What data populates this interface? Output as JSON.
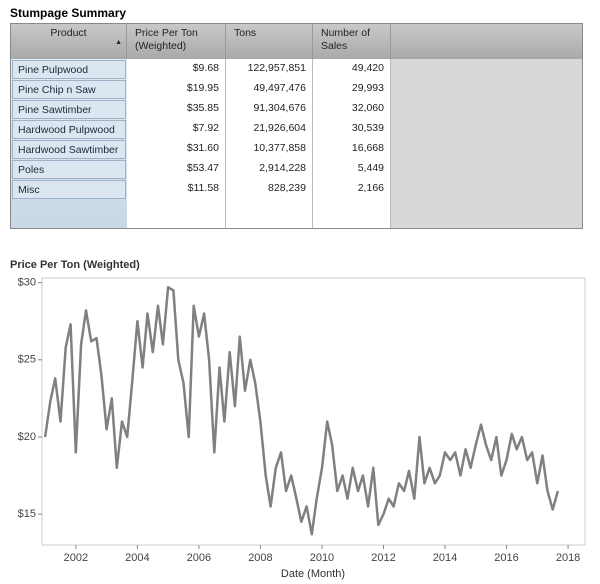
{
  "table": {
    "title": "Stumpage Summary",
    "columns": [
      "Product",
      "Price Per Ton (Weighted)",
      "Tons",
      "Number of Sales"
    ],
    "rows": [
      [
        "Pine Pulpwood",
        "$9.68",
        "122,957,851",
        "49,420"
      ],
      [
        "Pine Chip n Saw",
        "$19.95",
        "49,497,476",
        "29,993"
      ],
      [
        "Pine Sawtimber",
        "$35.85",
        "91,304,676",
        "32,060"
      ],
      [
        "Hardwood Pulpwood",
        "$7.92",
        "21,926,604",
        "30,539"
      ],
      [
        "Hardwood Sawtimber",
        "$31.60",
        "10,377,858",
        "16,668"
      ],
      [
        "Poles",
        "$53.47",
        "2,914,228",
        "5,449"
      ],
      [
        "Misc",
        "$11.58",
        "828,239",
        "2,166"
      ]
    ]
  },
  "chart_data": {
    "type": "line",
    "title": "Price Per Ton (Weighted)",
    "x_label": "Date (Month)",
    "color": "#808080",
    "x": [
      2001.0,
      2001.17,
      2001.33,
      2001.5,
      2001.67,
      2001.83,
      2002.0,
      2002.17,
      2002.33,
      2002.5,
      2002.67,
      2002.83,
      2003.0,
      2003.17,
      2003.33,
      2003.5,
      2003.67,
      2003.83,
      2004.0,
      2004.17,
      2004.33,
      2004.5,
      2004.67,
      2004.83,
      2005.0,
      2005.17,
      2005.33,
      2005.5,
      2005.67,
      2005.83,
      2006.0,
      2006.17,
      2006.33,
      2006.5,
      2006.67,
      2006.83,
      2007.0,
      2007.17,
      2007.33,
      2007.5,
      2007.67,
      2007.83,
      2008.0,
      2008.17,
      2008.33,
      2008.5,
      2008.67,
      2008.83,
      2009.0,
      2009.17,
      2009.33,
      2009.5,
      2009.67,
      2009.83,
      2010.0,
      2010.17,
      2010.33,
      2010.5,
      2010.67,
      2010.83,
      2011.0,
      2011.17,
      2011.33,
      2011.5,
      2011.67,
      2011.83,
      2012.0,
      2012.17,
      2012.33,
      2012.5,
      2012.67,
      2012.83,
      2013.0,
      2013.17,
      2013.33,
      2013.5,
      2013.67,
      2013.83,
      2014.0,
      2014.17,
      2014.33,
      2014.5,
      2014.67,
      2014.83,
      2015.0,
      2015.17,
      2015.33,
      2015.5,
      2015.67,
      2015.83,
      2016.0,
      2016.17,
      2016.33,
      2016.5,
      2016.67,
      2016.83,
      2017.0,
      2017.17,
      2017.33,
      2017.5,
      2017.67
    ],
    "values": [
      20,
      22.3,
      23.8,
      21,
      25.8,
      27.3,
      19,
      26,
      28.2,
      26.2,
      26.4,
      24,
      20.5,
      22.5,
      18,
      21,
      20,
      23.5,
      27.5,
      24.5,
      28,
      25.5,
      28.5,
      26,
      29.7,
      29.5,
      25,
      23.5,
      20,
      28.5,
      26.5,
      28,
      25,
      19,
      24.5,
      21,
      25.5,
      22,
      26.5,
      23,
      25,
      23.5,
      21,
      17.5,
      15.5,
      18,
      19,
      16.5,
      17.5,
      16,
      14.5,
      15.5,
      13.7,
      16,
      18,
      21,
      19.5,
      16.5,
      17.5,
      16,
      18,
      16.5,
      17.5,
      15.5,
      18,
      14.3,
      15,
      16,
      15.5,
      17,
      16.5,
      17.8,
      16,
      20,
      17,
      18,
      17,
      17.5,
      19,
      18.5,
      19,
      17.5,
      19.2,
      18,
      19.5,
      20.8,
      19.5,
      18.5,
      20,
      17.5,
      18.5,
      20.2,
      19.2,
      20,
      18.5,
      19,
      17,
      18.8,
      16.5,
      15.3,
      16.5
    ],
    "xlim": [
      2000.9,
      2018.55
    ],
    "xticks": [
      2002,
      2004,
      2006,
      2008,
      2010,
      2012,
      2014,
      2016,
      2018
    ],
    "ylim": [
      13,
      30.3
    ],
    "yticks": [
      {
        "value": 15,
        "label": "$15"
      },
      {
        "value": 20,
        "label": "$20"
      },
      {
        "value": 25,
        "label": "$25"
      },
      {
        "value": 30,
        "label": "$30"
      }
    ]
  }
}
